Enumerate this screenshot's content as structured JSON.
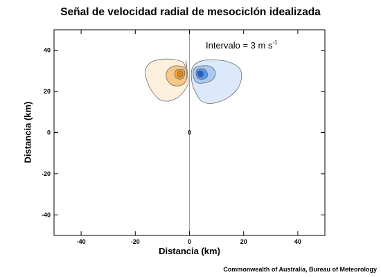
{
  "title": "Señal de velocidad radial de mesociclón idealizada",
  "credit": "Commonwealth of Australia, Bureau of Meteorology",
  "annotation": {
    "text": "Intervalo = 3 m s",
    "superscript": "-1"
  },
  "chart_data": {
    "type": "contour",
    "title": "Señal de velocidad radial de mesociclón idealizada",
    "xlabel": "Distancia (km)",
    "ylabel": "Distancia (km)",
    "xlim": [
      -50,
      50
    ],
    "ylim": [
      -50,
      50
    ],
    "xticks": [
      -40,
      -20,
      0,
      20,
      40
    ],
    "yticks": [
      -40,
      -20,
      0,
      20,
      40
    ],
    "xtick_labels": [
      "-40",
      "-20",
      "0",
      "20",
      "40"
    ],
    "ytick_labels": [
      "-40",
      "-20",
      "0",
      "20",
      "40"
    ],
    "contour_interval": "3 m s-1",
    "center_marker": {
      "x": 0,
      "y": 0,
      "label": "0"
    },
    "radar_beam_line_x": 0,
    "series": [
      {
        "sign": "negative",
        "center": [
          -3.5,
          28.5
        ],
        "levels": [
          {
            "level": 1,
            "color": "#fdf0dc",
            "polygon": [
              [
                -1.3,
                35.1
              ],
              [
                -1.3,
                31.8
              ],
              [
                -2.8,
                34.5
              ],
              [
                -8.0,
                35.8
              ],
              [
                -13.7,
                34.5
              ],
              [
                -16.3,
                30.1
              ],
              [
                -15.0,
                22.9
              ],
              [
                -11.6,
                16.6
              ],
              [
                -8.0,
                15.3
              ],
              [
                -4.1,
                17.3
              ],
              [
                -1.3,
                21.6
              ],
              [
                -0.5,
                24.9
              ],
              [
                -1.3,
                35.1
              ]
            ]
          },
          {
            "level": 2,
            "color": "#f5c88a",
            "polygon": [
              [
                -1.0,
                29.9
              ],
              [
                -1.3,
                31.2
              ],
              [
                -3.6,
                32.4
              ],
              [
                -6.2,
                32.2
              ],
              [
                -8.3,
                29.9
              ],
              [
                -8.5,
                26.4
              ],
              [
                -6.7,
                23.4
              ],
              [
                -4.1,
                22.7
              ],
              [
                -1.8,
                24.1
              ],
              [
                -1.0,
                26.6
              ],
              [
                -1.0,
                29.9
              ]
            ]
          },
          {
            "level": 3,
            "color": "#f0a53c",
            "polygon": [
              [
                -1.8,
                30.1
              ],
              [
                -3.4,
                30.8
              ],
              [
                -4.9,
                30.3
              ],
              [
                -5.4,
                28.5
              ],
              [
                -4.9,
                26.6
              ],
              [
                -3.4,
                26.0
              ],
              [
                -2.1,
                26.9
              ],
              [
                -1.8,
                30.1
              ]
            ]
          },
          {
            "level": 4,
            "color": "#e8860f",
            "polygon": [
              [
                -2.6,
                29.6
              ],
              [
                -3.9,
                29.9
              ],
              [
                -4.4,
                28.5
              ],
              [
                -3.9,
                27.1
              ],
              [
                -2.6,
                27.5
              ],
              [
                -2.6,
                29.6
              ]
            ]
          }
        ]
      },
      {
        "sign": "positive",
        "center": [
          3.9,
          28.5
        ],
        "levels": [
          {
            "level": 1,
            "color": "#dce9fb",
            "polygon": [
              [
                0.8,
                30.3
              ],
              [
                2.3,
                33.5
              ],
              [
                6.2,
                35.3
              ],
              [
                13.9,
                34.6
              ],
              [
                18.8,
                30.6
              ],
              [
                18.6,
                23.4
              ],
              [
                14.9,
                17.6
              ],
              [
                9.3,
                14.4
              ],
              [
                4.9,
                14.9
              ],
              [
                2.6,
                18.7
              ],
              [
                1.0,
                23.8
              ],
              [
                0.8,
                30.3
              ]
            ]
          },
          {
            "level": 2,
            "color": "#a9c9f2",
            "polygon": [
              [
                1.6,
                30.8
              ],
              [
                4.1,
                32.4
              ],
              [
                7.7,
                32.2
              ],
              [
                9.5,
                29.6
              ],
              [
                9.0,
                26.4
              ],
              [
                6.4,
                24.4
              ],
              [
                3.1,
                24.1
              ],
              [
                1.6,
                26.4
              ],
              [
                1.6,
                30.8
              ]
            ]
          },
          {
            "level": 3,
            "color": "#5a95e6",
            "polygon": [
              [
                2.6,
                30.3
              ],
              [
                4.1,
                31.1
              ],
              [
                5.7,
                30.6
              ],
              [
                6.7,
                28.5
              ],
              [
                6.2,
                26.6
              ],
              [
                4.4,
                25.9
              ],
              [
                2.8,
                26.9
              ],
              [
                2.6,
                30.3
              ]
            ]
          },
          {
            "level": 4,
            "color": "#1f5fd0",
            "polygon": [
              [
                3.1,
                29.6
              ],
              [
                4.4,
                30.1
              ],
              [
                5.2,
                28.5
              ],
              [
                4.6,
                27.1
              ],
              [
                3.3,
                27.4
              ],
              [
                3.1,
                29.6
              ]
            ]
          }
        ]
      }
    ]
  }
}
